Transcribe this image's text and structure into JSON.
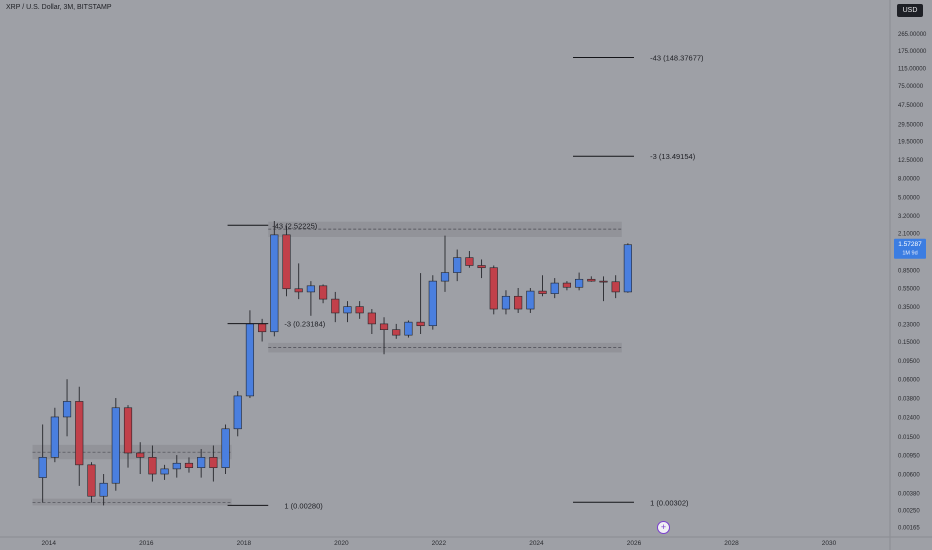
{
  "header": {
    "symbol_title": "XRP / U.S. Dollar, 3M, BITSTAMP",
    "currency_button": "USD"
  },
  "colors": {
    "background": "#9ea0a6",
    "bull": "#4a7fdf",
    "bear": "#c1404a",
    "wick": "#26272c",
    "zone": "#8f9197",
    "price_tag": "#3b7de2",
    "plus_icon": "#7b3fd0"
  },
  "icons": {
    "add_button": "plus-circle-icon"
  },
  "chart_data": {
    "type": "candlestick",
    "price_scale": "log",
    "ylim": [
      0.0013,
      600
    ],
    "xlim": [
      "2013-01",
      "2031-04"
    ],
    "x_ticks": [
      "2014",
      "2016",
      "2018",
      "2020",
      "2022",
      "2024",
      "2026",
      "2028",
      "2030"
    ],
    "y_ticks": [
      "265.00000",
      "175.00000",
      "115.00000",
      "75.00000",
      "47.50000",
      "29.50000",
      "19.50000",
      "12.50000",
      "8.00000",
      "5.00000",
      "3.20000",
      "2.10000",
      "1.35000",
      "0.85000",
      "0.55000",
      "0.35000",
      "0.23000",
      "0.15000",
      "0.09500",
      "0.06000",
      "0.03800",
      "0.02400",
      "0.01500",
      "0.00950",
      "0.00600",
      "0.00380",
      "0.00250",
      "0.00165"
    ],
    "last_price": {
      "value": "1.57287",
      "countdown": "1M 9d"
    },
    "candles": [
      {
        "t": "2013-10",
        "o": 0.0055,
        "h": 0.02,
        "l": 0.003,
        "c": 0.009
      },
      {
        "t": "2014-01",
        "o": 0.009,
        "h": 0.03,
        "l": 0.008,
        "c": 0.024
      },
      {
        "t": "2014-04",
        "o": 0.024,
        "h": 0.06,
        "l": 0.015,
        "c": 0.035
      },
      {
        "t": "2014-07",
        "o": 0.035,
        "h": 0.05,
        "l": 0.0045,
        "c": 0.0075
      },
      {
        "t": "2014-10",
        "o": 0.0075,
        "h": 0.008,
        "l": 0.003,
        "c": 0.0035
      },
      {
        "t": "2015-01",
        "o": 0.0035,
        "h": 0.006,
        "l": 0.0028,
        "c": 0.0048
      },
      {
        "t": "2015-04",
        "o": 0.0048,
        "h": 0.038,
        "l": 0.004,
        "c": 0.03
      },
      {
        "t": "2015-07",
        "o": 0.03,
        "h": 0.032,
        "l": 0.007,
        "c": 0.01
      },
      {
        "t": "2015-10",
        "o": 0.01,
        "h": 0.013,
        "l": 0.006,
        "c": 0.009
      },
      {
        "t": "2016-01",
        "o": 0.009,
        "h": 0.012,
        "l": 0.005,
        "c": 0.006
      },
      {
        "t": "2016-04",
        "o": 0.006,
        "h": 0.0075,
        "l": 0.0052,
        "c": 0.0068
      },
      {
        "t": "2016-07",
        "o": 0.0068,
        "h": 0.0095,
        "l": 0.0055,
        "c": 0.0078
      },
      {
        "t": "2016-10",
        "o": 0.0078,
        "h": 0.009,
        "l": 0.0062,
        "c": 0.007
      },
      {
        "t": "2017-01",
        "o": 0.007,
        "h": 0.011,
        "l": 0.0055,
        "c": 0.009
      },
      {
        "t": "2017-04",
        "o": 0.009,
        "h": 0.012,
        "l": 0.005,
        "c": 0.007
      },
      {
        "t": "2017-07",
        "o": 0.007,
        "h": 0.02,
        "l": 0.006,
        "c": 0.018
      },
      {
        "t": "2017-10",
        "o": 0.018,
        "h": 0.045,
        "l": 0.015,
        "c": 0.04
      },
      {
        "t": "2018-01",
        "o": 0.04,
        "h": 0.32,
        "l": 0.038,
        "c": 0.23
      },
      {
        "t": "2018-04",
        "o": 0.23,
        "h": 0.26,
        "l": 0.15,
        "c": 0.19
      },
      {
        "t": "2018-07",
        "o": 0.19,
        "h": 2.8,
        "l": 0.17,
        "c": 2.0
      },
      {
        "t": "2018-10",
        "o": 2.0,
        "h": 2.5,
        "l": 0.45,
        "c": 0.54
      },
      {
        "t": "2019-01",
        "o": 0.54,
        "h": 1.0,
        "l": 0.42,
        "c": 0.5
      },
      {
        "t": "2019-04",
        "o": 0.5,
        "h": 0.65,
        "l": 0.28,
        "c": 0.58
      },
      {
        "t": "2019-07",
        "o": 0.58,
        "h": 0.6,
        "l": 0.38,
        "c": 0.42
      },
      {
        "t": "2019-10",
        "o": 0.42,
        "h": 0.5,
        "l": 0.24,
        "c": 0.3
      },
      {
        "t": "2020-01",
        "o": 0.3,
        "h": 0.4,
        "l": 0.24,
        "c": 0.35
      },
      {
        "t": "2020-04",
        "o": 0.35,
        "h": 0.4,
        "l": 0.26,
        "c": 0.3
      },
      {
        "t": "2020-07",
        "o": 0.3,
        "h": 0.33,
        "l": 0.18,
        "c": 0.23
      },
      {
        "t": "2020-10",
        "o": 0.23,
        "h": 0.27,
        "l": 0.11,
        "c": 0.2
      },
      {
        "t": "2021-01",
        "o": 0.2,
        "h": 0.23,
        "l": 0.16,
        "c": 0.175
      },
      {
        "t": "2021-04",
        "o": 0.175,
        "h": 0.25,
        "l": 0.165,
        "c": 0.24
      },
      {
        "t": "2021-07",
        "o": 0.24,
        "h": 0.79,
        "l": 0.18,
        "c": 0.22
      },
      {
        "t": "2021-10",
        "o": 0.22,
        "h": 0.75,
        "l": 0.2,
        "c": 0.65
      },
      {
        "t": "2022-01",
        "o": 0.65,
        "h": 1.96,
        "l": 0.5,
        "c": 0.8
      },
      {
        "t": "2022-04",
        "o": 0.8,
        "h": 1.4,
        "l": 0.65,
        "c": 1.15
      },
      {
        "t": "2022-07",
        "o": 1.15,
        "h": 1.35,
        "l": 0.9,
        "c": 0.95
      },
      {
        "t": "2022-10",
        "o": 0.95,
        "h": 1.1,
        "l": 0.7,
        "c": 0.9
      },
      {
        "t": "2023-01",
        "o": 0.9,
        "h": 0.95,
        "l": 0.29,
        "c": 0.33
      },
      {
        "t": "2023-04",
        "o": 0.33,
        "h": 0.52,
        "l": 0.29,
        "c": 0.45
      },
      {
        "t": "2023-07",
        "o": 0.45,
        "h": 0.55,
        "l": 0.3,
        "c": 0.33
      },
      {
        "t": "2023-10",
        "o": 0.33,
        "h": 0.55,
        "l": 0.3,
        "c": 0.51
      },
      {
        "t": "2024-01",
        "o": 0.51,
        "h": 0.75,
        "l": 0.45,
        "c": 0.48
      },
      {
        "t": "2024-04",
        "o": 0.48,
        "h": 0.7,
        "l": 0.43,
        "c": 0.62
      },
      {
        "t": "2024-07",
        "o": 0.62,
        "h": 0.65,
        "l": 0.52,
        "c": 0.56
      },
      {
        "t": "2024-10",
        "o": 0.56,
        "h": 0.8,
        "l": 0.52,
        "c": 0.68
      },
      {
        "t": "2025-01",
        "o": 0.68,
        "h": 0.73,
        "l": 0.64,
        "c": 0.65
      },
      {
        "t": "2025-04",
        "o": 0.65,
        "h": 0.73,
        "l": 0.4,
        "c": 0.64
      },
      {
        "t": "2025-07",
        "o": 0.64,
        "h": 0.75,
        "l": 0.43,
        "c": 0.5
      },
      {
        "t": "2025-10",
        "o": 0.5,
        "h": 1.63,
        "l": 0.49,
        "c": 1.5729
      }
    ],
    "zones": [
      {
        "from": "2013-09",
        "to": "2017-10",
        "low": 0.0086,
        "high": 0.0122,
        "mid": 0.0102
      },
      {
        "from": "2013-09",
        "to": "2017-10",
        "low": 0.0028,
        "high": 0.0033,
        "mid": 0.003
      },
      {
        "from": "2018-07",
        "to": "2025-10",
        "low": 1.9,
        "high": 2.75,
        "mid": 2.3
      },
      {
        "from": "2018-07",
        "to": "2025-10",
        "low": 0.115,
        "high": 0.145,
        "mid": 0.13
      }
    ],
    "levels": [
      {
        "label": "-43 (2.52225)",
        "value": 2.52225,
        "from": "2017-09",
        "to": "2018-07",
        "label_at": "2018-07"
      },
      {
        "label": "-3 (0.23184)",
        "value": 0.23184,
        "from": "2017-09",
        "to": "2018-07",
        "label_at": "2018-10"
      },
      {
        "label": "1 (0.00280)",
        "value": 0.0028,
        "from": "2017-09",
        "to": "2018-07",
        "label_at": "2018-10"
      },
      {
        "label": "-43 (148.37677)",
        "value": 148.37677,
        "from": "2024-10",
        "to": "2026-01",
        "label_at": "2026-04"
      },
      {
        "label": "-3 (13.49154)",
        "value": 13.49154,
        "from": "2024-10",
        "to": "2026-01",
        "label_at": "2026-04"
      },
      {
        "label": "1 (0.00302)",
        "value": 0.00302,
        "from": "2024-10",
        "to": "2026-01",
        "label_at": "2026-04"
      }
    ]
  }
}
